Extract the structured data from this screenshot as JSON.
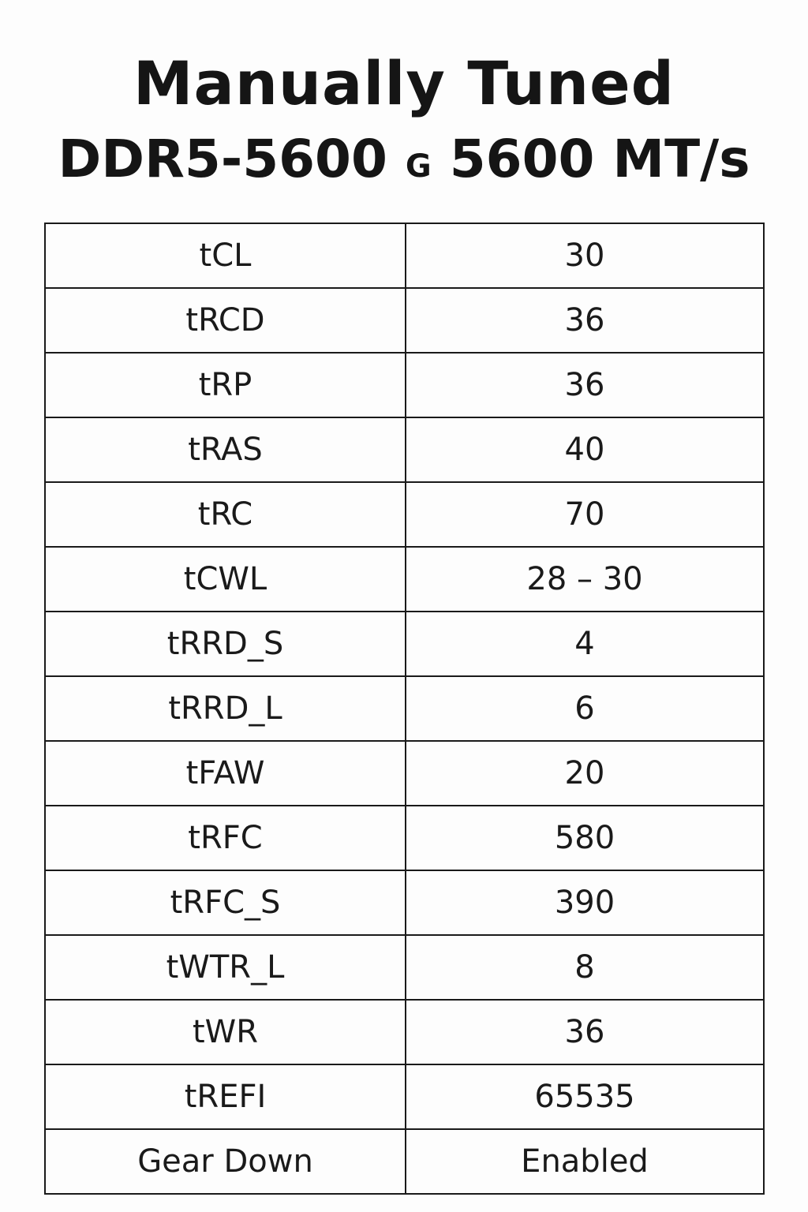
{
  "title": {
    "line1": "Manually Tuned",
    "line2_part1": "DDR5-5600",
    "line2_sep": "G",
    "line2_part2": "5600 MT/s"
  },
  "table": {
    "rows": [
      {
        "param": "tCL",
        "value": "30"
      },
      {
        "param": "tRCD",
        "value": "36"
      },
      {
        "param": "tRP",
        "value": "36"
      },
      {
        "param": "tRAS",
        "value": "40"
      },
      {
        "param": "tRC",
        "value": "70"
      },
      {
        "param": "tCWL",
        "value": "28 – 30"
      },
      {
        "param": "tRRD_S",
        "value": "4"
      },
      {
        "param": "tRRD_L",
        "value": "6"
      },
      {
        "param": "tFAW",
        "value": "20"
      },
      {
        "param": "tRFC",
        "value": "580"
      },
      {
        "param": "tRFC_S",
        "value": "390"
      },
      {
        "param": "tWTR_L",
        "value": "8"
      },
      {
        "param": "tWR",
        "value": "36"
      },
      {
        "param": "tREFI",
        "value": "65535"
      },
      {
        "param": "Gear Down",
        "value": "Enabled"
      }
    ]
  }
}
